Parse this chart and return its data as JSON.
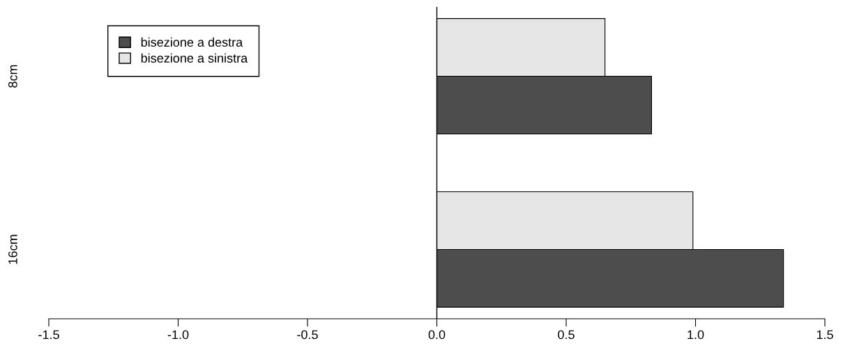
{
  "chart_data": {
    "type": "bar",
    "orientation": "horizontal",
    "categories": [
      "8cm",
      "16cm"
    ],
    "series": [
      {
        "name": "bisezione a destra",
        "color": "#4d4d4d",
        "values": [
          0.83,
          1.34
        ]
      },
      {
        "name": "bisezione a sinistra",
        "color": "#e6e6e6",
        "values": [
          0.65,
          0.99
        ]
      }
    ],
    "xlim": [
      -1.5,
      1.5
    ],
    "xticks": [
      -1.5,
      {
        "value": -1,
        "label": "-1.0"
      },
      -0.5,
      {
        "value": 0,
        "label": "0.0"
      },
      0.5,
      {
        "value": 1,
        "label": "1.0"
      },
      1.5
    ],
    "ref_lines": [
      {
        "axis": "x",
        "value": 0,
        "color": "#000000"
      }
    ],
    "legend": "top left",
    "grid": false
  }
}
